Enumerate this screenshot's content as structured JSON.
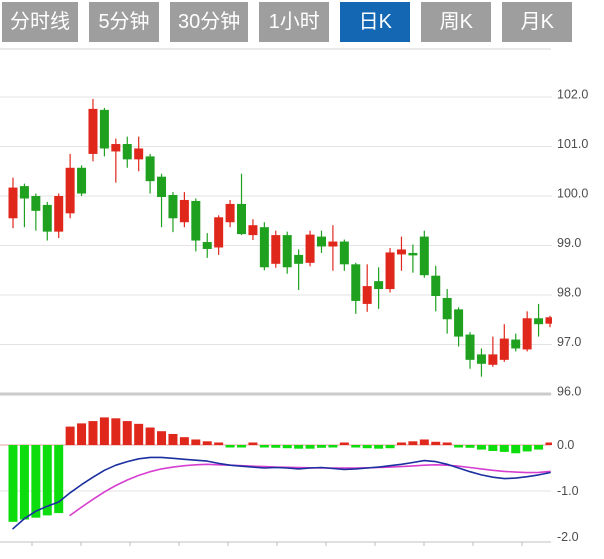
{
  "toolbar": {
    "tabs": [
      {
        "label": "分时线",
        "active": false
      },
      {
        "label": "5分钟",
        "active": false
      },
      {
        "label": "30分钟",
        "active": false
      },
      {
        "label": "1小时",
        "active": false
      },
      {
        "label": "日K",
        "active": true
      },
      {
        "label": "周K",
        "active": false
      },
      {
        "label": "月K",
        "active": false
      }
    ]
  },
  "chart_data": {
    "type": "candlestick+macd",
    "title": "",
    "legend_position": "none",
    "grid": true,
    "price_axis": {
      "side": "right",
      "tick_labels": [
        "102.0",
        "101.0",
        "100.0",
        "99.0",
        "98.0",
        "97.0",
        "96.0"
      ],
      "tick_values": [
        102.0,
        101.0,
        100.0,
        99.0,
        98.0,
        97.0,
        96.0
      ],
      "range": [
        96.0,
        102.95
      ]
    },
    "macd_axis": {
      "side": "right",
      "tick_labels": [
        "0.0",
        "-1.0",
        "-2.0"
      ],
      "tick_values": [
        0.0,
        -1.0,
        -2.0
      ],
      "range": [
        -2.1,
        0.7
      ]
    },
    "candles_ohlc_format": [
      "open",
      "close",
      "low",
      "high"
    ],
    "candles": [
      [
        99.55,
        100.17,
        99.35,
        100.37
      ],
      [
        100.2,
        99.95,
        99.37,
        100.25
      ],
      [
        100.0,
        99.7,
        99.3,
        100.05
      ],
      [
        99.82,
        99.28,
        99.1,
        99.88
      ],
      [
        99.28,
        100.0,
        99.15,
        100.05
      ],
      [
        99.65,
        100.57,
        99.55,
        100.85
      ],
      [
        100.57,
        100.05,
        100.0,
        100.62
      ],
      [
        100.85,
        101.76,
        100.7,
        101.96
      ],
      [
        101.74,
        100.96,
        100.8,
        101.78
      ],
      [
        100.9,
        101.05,
        100.27,
        101.16
      ],
      [
        101.05,
        100.74,
        100.57,
        101.2
      ],
      [
        100.74,
        100.96,
        100.5,
        101.2
      ],
      [
        100.8,
        100.3,
        100.05,
        100.85
      ],
      [
        100.39,
        99.98,
        99.37,
        100.45
      ],
      [
        100.02,
        99.55,
        99.27,
        100.08
      ],
      [
        99.47,
        99.92,
        99.37,
        100.08
      ],
      [
        99.9,
        99.1,
        98.88,
        99.95
      ],
      [
        99.07,
        98.93,
        98.75,
        99.25
      ],
      [
        98.96,
        99.57,
        98.81,
        99.61
      ],
      [
        99.47,
        99.84,
        99.37,
        99.92
      ],
      [
        99.84,
        99.23,
        99.21,
        100.45
      ],
      [
        99.21,
        99.41,
        99.11,
        99.53
      ],
      [
        99.37,
        98.56,
        98.5,
        99.47
      ],
      [
        98.63,
        99.21,
        98.55,
        99.3
      ],
      [
        99.21,
        98.56,
        98.43,
        99.28
      ],
      [
        98.81,
        98.63,
        98.1,
        98.92
      ],
      [
        98.65,
        99.22,
        98.58,
        99.3
      ],
      [
        99.18,
        98.98,
        98.85,
        99.3
      ],
      [
        98.98,
        99.08,
        98.49,
        99.41
      ],
      [
        99.08,
        98.62,
        98.49,
        99.12
      ],
      [
        98.62,
        97.88,
        97.62,
        98.65
      ],
      [
        97.82,
        98.18,
        97.66,
        98.62
      ],
      [
        98.28,
        98.12,
        97.72,
        98.56
      ],
      [
        98.12,
        98.86,
        98.05,
        98.95
      ],
      [
        98.82,
        98.92,
        98.49,
        99.18
      ],
      [
        98.85,
        98.8,
        98.45,
        99.02
      ],
      [
        99.18,
        98.4,
        98.35,
        99.3
      ],
      [
        98.39,
        97.98,
        97.67,
        98.59
      ],
      [
        97.94,
        97.51,
        97.22,
        98.12
      ],
      [
        97.71,
        97.16,
        96.96,
        97.75
      ],
      [
        97.2,
        96.69,
        96.51,
        97.25
      ],
      [
        96.8,
        96.61,
        96.35,
        96.92
      ],
      [
        96.59,
        96.8,
        96.55,
        97.16
      ],
      [
        96.69,
        97.12,
        96.65,
        97.41
      ],
      [
        97.1,
        96.92,
        96.86,
        97.22
      ],
      [
        96.9,
        97.53,
        96.86,
        97.67
      ],
      [
        97.53,
        97.41,
        97.16,
        97.82
      ],
      [
        97.42,
        97.55,
        97.35,
        97.58
      ]
    ],
    "macd": {
      "hist": [
        -1.67,
        -1.62,
        -1.58,
        -1.53,
        -1.48,
        0.4,
        0.47,
        0.52,
        0.6,
        0.58,
        0.52,
        0.46,
        0.38,
        0.3,
        0.24,
        0.17,
        0.12,
        0.08,
        0.04,
        -0.04,
        -0.05,
        0.04,
        -0.02,
        -0.06,
        -0.07,
        -0.08,
        -0.08,
        -0.06,
        -0.03,
        0.05,
        -0.04,
        -0.07,
        -0.08,
        -0.07,
        0.05,
        0.08,
        0.12,
        0.07,
        0.03,
        -0.03,
        -0.06,
        -0.1,
        -0.13,
        -0.15,
        -0.18,
        -0.14,
        -0.1,
        0.04
      ],
      "dif": [
        -1.82,
        -1.6,
        -1.44,
        -1.33,
        -1.24,
        -1.04,
        -0.86,
        -0.7,
        -0.55,
        -0.44,
        -0.36,
        -0.3,
        -0.27,
        -0.27,
        -0.29,
        -0.31,
        -0.33,
        -0.35,
        -0.4,
        -0.44,
        -0.46,
        -0.48,
        -0.5,
        -0.49,
        -0.5,
        -0.52,
        -0.5,
        -0.49,
        -0.51,
        -0.53,
        -0.52,
        -0.5,
        -0.48,
        -0.45,
        -0.42,
        -0.38,
        -0.34,
        -0.36,
        -0.42,
        -0.5,
        -0.58,
        -0.65,
        -0.7,
        -0.73,
        -0.72,
        -0.69,
        -0.65,
        -0.6
      ],
      "dea": [
        null,
        null,
        null,
        null,
        null,
        -1.53,
        -1.35,
        -1.18,
        -1.02,
        -0.88,
        -0.76,
        -0.66,
        -0.58,
        -0.52,
        -0.48,
        -0.45,
        -0.43,
        -0.42,
        -0.43,
        -0.44,
        -0.45,
        -0.46,
        -0.47,
        -0.48,
        -0.485,
        -0.49,
        -0.495,
        -0.5,
        -0.5,
        -0.5,
        -0.5,
        -0.495,
        -0.49,
        -0.48,
        -0.47,
        -0.455,
        -0.44,
        -0.43,
        -0.44,
        -0.46,
        -0.49,
        -0.52,
        -0.55,
        -0.575,
        -0.59,
        -0.6,
        -0.595,
        -0.575
      ]
    },
    "colors": {
      "candle_up": "#e0271c",
      "candle_down": "#1fa11f",
      "hist_up": "#e0271c",
      "hist_down": "#0ddd0d",
      "dif_line": "#1c2fa0",
      "dea_line": "#d63ecf",
      "grid": "#e3e3e3",
      "border": "#d6d6d6",
      "separator": "#cbcbcb",
      "zero_line": "#e6a39e",
      "axis_text": "#4c4c4c",
      "tab_bg": "#9e9e9e",
      "tab_active_bg": "#1467b3",
      "tab_text": "#ffffff"
    }
  }
}
